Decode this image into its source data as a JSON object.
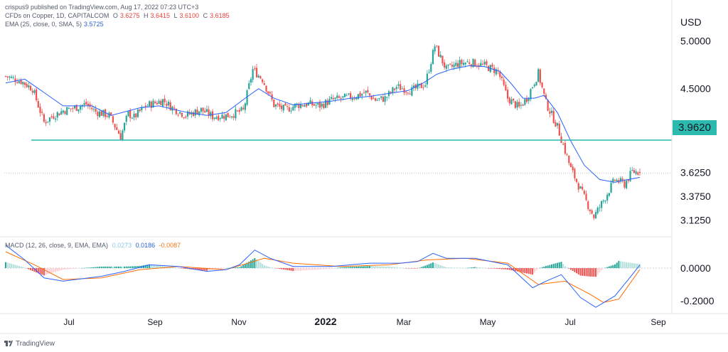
{
  "header": {
    "publisher": "crispus9 published on TradingView.com, Aug 17, 2022 07:23 UTC+3",
    "instrument": "CFDs on Copper, 1D, CAPITALCOM",
    "o_label": "O",
    "o_value": "3.6275",
    "h_label": "H",
    "h_value": "3.6415",
    "l_label": "L",
    "l_value": "3.6100",
    "c_label": "C",
    "c_value": "3.6185",
    "ema_label": "EMA (25, close, 0, SMA, 5)",
    "ema_value": "3.5725",
    "macd_label": "MACD (12, 26, close, 9, EMA, EMA)",
    "macd_hist_value": "0.0273",
    "macd_value": "0.0186",
    "macd_signal_value": "-0.0087"
  },
  "price_tag": "3.9620",
  "brand": "TradingView",
  "colors": {
    "up": "#26a69a",
    "down": "#ef5350",
    "ema": "#2962ff",
    "level_line": "#2cb9ae",
    "macd_line": "#2962ff",
    "signal_line": "#ff6d00",
    "hist_up_strong": "#26a69a",
    "hist_up_weak": "#b2dfdb",
    "hist_down_strong": "#ef5350",
    "hist_down_weak": "#ffcdd2"
  },
  "chart_data": [
    {
      "type": "candlestick",
      "currency": "USD",
      "y_ticks": [
        "5.0000",
        "4.5000",
        "3.6250",
        "3.3750",
        "3.1250"
      ],
      "ylim": [
        3.0,
        5.2
      ],
      "x_ticks": [
        "Jul",
        "Sep",
        "Nov",
        "2022",
        "Mar",
        "May",
        "Jul",
        "Sep"
      ],
      "horizontal_level": 3.962,
      "last_close": 3.6185,
      "grid": false,
      "path_points": [
        [
          0,
          4.63
        ],
        [
          8,
          4.58
        ],
        [
          14,
          4.5
        ],
        [
          20,
          4.15
        ],
        [
          25,
          4.22
        ],
        [
          30,
          4.27
        ],
        [
          36,
          4.3
        ],
        [
          42,
          4.34
        ],
        [
          47,
          4.26
        ],
        [
          54,
          4.22
        ],
        [
          60,
          4.0
        ],
        [
          64,
          4.24
        ],
        [
          67,
          4.2
        ],
        [
          73,
          4.32
        ],
        [
          82,
          4.38
        ],
        [
          87,
          4.3
        ],
        [
          94,
          4.22
        ],
        [
          98,
          4.25
        ],
        [
          102,
          4.28
        ],
        [
          108,
          4.21
        ],
        [
          116,
          4.22
        ],
        [
          124,
          4.27
        ],
        [
          129,
          4.7
        ],
        [
          134,
          4.6
        ],
        [
          140,
          4.33
        ],
        [
          146,
          4.28
        ],
        [
          152,
          4.33
        ],
        [
          158,
          4.34
        ],
        [
          164,
          4.32
        ],
        [
          170,
          4.38
        ],
        [
          176,
          4.4
        ],
        [
          182,
          4.42
        ],
        [
          188,
          4.46
        ],
        [
          193,
          4.38
        ],
        [
          198,
          4.4
        ],
        [
          204,
          4.52
        ],
        [
          212,
          4.48
        ],
        [
          219,
          4.55
        ],
        [
          224,
          4.95
        ],
        [
          230,
          4.7
        ],
        [
          236,
          4.76
        ],
        [
          242,
          4.78
        ],
        [
          250,
          4.74
        ],
        [
          257,
          4.68
        ],
        [
          262,
          4.4
        ],
        [
          268,
          4.3
        ],
        [
          272,
          4.4
        ],
        [
          278,
          4.66
        ],
        [
          282,
          4.35
        ],
        [
          288,
          4.1
        ],
        [
          295,
          3.66
        ],
        [
          302,
          3.36
        ],
        [
          307,
          3.16
        ],
        [
          312,
          3.33
        ],
        [
          318,
          3.55
        ],
        [
          323,
          3.5
        ],
        [
          327,
          3.63
        ],
        [
          331,
          3.63
        ]
      ],
      "ema_points": [
        [
          0,
          4.56
        ],
        [
          10,
          4.6
        ],
        [
          20,
          4.46
        ],
        [
          30,
          4.32
        ],
        [
          45,
          4.32
        ],
        [
          55,
          4.22
        ],
        [
          70,
          4.3
        ],
        [
          80,
          4.32
        ],
        [
          95,
          4.25
        ],
        [
          105,
          4.22
        ],
        [
          115,
          4.25
        ],
        [
          125,
          4.4
        ],
        [
          132,
          4.5
        ],
        [
          140,
          4.4
        ],
        [
          150,
          4.33
        ],
        [
          160,
          4.35
        ],
        [
          170,
          4.37
        ],
        [
          180,
          4.4
        ],
        [
          190,
          4.42
        ],
        [
          200,
          4.45
        ],
        [
          210,
          4.48
        ],
        [
          218,
          4.56
        ],
        [
          225,
          4.65
        ],
        [
          232,
          4.7
        ],
        [
          242,
          4.74
        ],
        [
          250,
          4.73
        ],
        [
          258,
          4.68
        ],
        [
          264,
          4.55
        ],
        [
          270,
          4.4
        ],
        [
          276,
          4.4
        ],
        [
          281,
          4.43
        ],
        [
          288,
          4.25
        ],
        [
          295,
          3.95
        ],
        [
          302,
          3.7
        ],
        [
          310,
          3.55
        ],
        [
          318,
          3.52
        ],
        [
          325,
          3.55
        ],
        [
          331,
          3.5725
        ]
      ]
    },
    {
      "type": "macd",
      "y_ticks": [
        "0.0000",
        "-0.2000"
      ],
      "ylim": [
        -0.27,
        0.18
      ],
      "macd_points": [
        [
          0,
          0.14
        ],
        [
          10,
          0.05
        ],
        [
          20,
          -0.06
        ],
        [
          30,
          -0.08
        ],
        [
          50,
          -0.05
        ],
        [
          62,
          -0.02
        ],
        [
          75,
          0.02
        ],
        [
          90,
          0.01
        ],
        [
          105,
          -0.02
        ],
        [
          115,
          -0.01
        ],
        [
          122,
          0.02
        ],
        [
          130,
          0.11
        ],
        [
          138,
          0.06
        ],
        [
          150,
          0.01
        ],
        [
          170,
          0.01
        ],
        [
          190,
          0.03
        ],
        [
          206,
          0.03
        ],
        [
          215,
          0.04
        ],
        [
          223,
          0.09
        ],
        [
          230,
          0.06
        ],
        [
          245,
          0.06
        ],
        [
          262,
          0.02
        ],
        [
          275,
          -0.12
        ],
        [
          282,
          -0.08
        ],
        [
          290,
          -0.04
        ],
        [
          300,
          -0.18
        ],
        [
          308,
          -0.24
        ],
        [
          318,
          -0.17
        ],
        [
          325,
          -0.07
        ],
        [
          331,
          0.0186
        ]
      ],
      "signal_points": [
        [
          0,
          0.1
        ],
        [
          15,
          0.02
        ],
        [
          30,
          -0.07
        ],
        [
          50,
          -0.06
        ],
        [
          70,
          -0.01
        ],
        [
          90,
          0.01
        ],
        [
          115,
          -0.01
        ],
        [
          135,
          0.06
        ],
        [
          150,
          0.03
        ],
        [
          175,
          0.01
        ],
        [
          200,
          0.02
        ],
        [
          220,
          0.05
        ],
        [
          240,
          0.06
        ],
        [
          262,
          0.03
        ],
        [
          278,
          -0.1
        ],
        [
          292,
          -0.08
        ],
        [
          305,
          -0.16
        ],
        [
          312,
          -0.21
        ],
        [
          320,
          -0.19
        ],
        [
          331,
          -0.0087
        ]
      ]
    }
  ]
}
